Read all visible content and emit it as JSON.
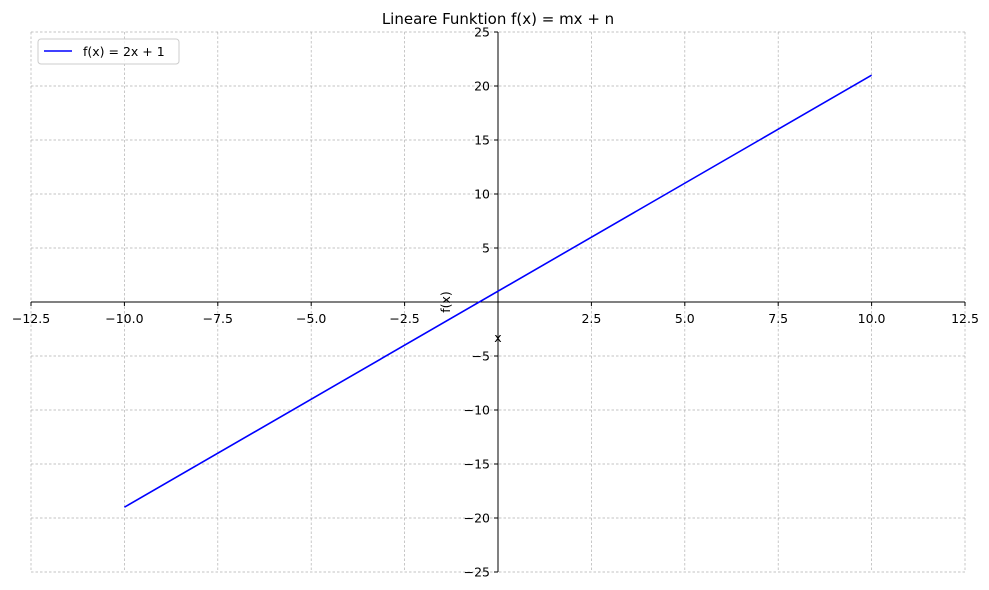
{
  "chart_data": {
    "type": "line",
    "title": "Lineare Funktion f(x) = mx + n",
    "xlabel": "x",
    "ylabel": "f(x)",
    "xlim": [
      -12.5,
      12.5
    ],
    "ylim": [
      -25,
      25
    ],
    "x_ticks": [
      -12.5,
      -10,
      -7.5,
      -5,
      -2.5,
      2.5,
      5,
      7.5,
      10,
      12.5
    ],
    "x_tick_labels": [
      "−12.5",
      "−10.0",
      "−7.5",
      "−5.0",
      "−2.5",
      "2.5",
      "5.0",
      "7.5",
      "10.0",
      "12.5"
    ],
    "y_ticks": [
      -25,
      -20,
      -15,
      -10,
      -5,
      5,
      10,
      15,
      20,
      25
    ],
    "y_tick_labels": [
      "−25",
      "−20",
      "−15",
      "−10",
      "−5",
      "5",
      "10",
      "15",
      "20",
      "25"
    ],
    "grid": true,
    "legend_position": "top-left",
    "series": [
      {
        "name": "f(x) = 2x + 1",
        "color": "#0000ff",
        "x": [
          -10,
          10
        ],
        "y": [
          -19,
          21
        ]
      }
    ]
  }
}
